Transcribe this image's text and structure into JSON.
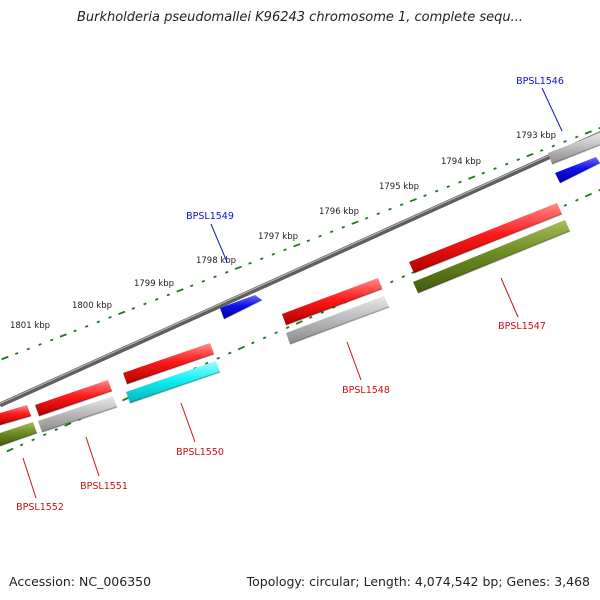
{
  "title": "Burkholderia pseudomallei K96243 chromosome 1, complete sequ...",
  "footer": {
    "accession": "Accession: NC_006350",
    "summary": "Topology: circular; Length: 4,074,542 bp; Genes: 3,468"
  },
  "colors": {
    "gene_label_forward": "#1010cc",
    "gene_label_reverse": "#cc1010",
    "tick_dots": "#1a7a1a",
    "backbone": "#7a7a7a"
  },
  "scale_labels": [
    "1793 kbp",
    "1794 kbp",
    "1795 kbp",
    "1796 kbp",
    "1797 kbp",
    "1798 kbp",
    "1799 kbp",
    "1800 kbp",
    "1801 kbp"
  ],
  "features": [
    {
      "id": "f1",
      "color": "red"
    },
    {
      "id": "f2",
      "color": "red"
    },
    {
      "id": "f3",
      "color": "red"
    },
    {
      "id": "f4",
      "color": "red"
    },
    {
      "id": "f5",
      "color": "red"
    },
    {
      "id": "f6",
      "color": "green"
    },
    {
      "id": "f7",
      "color": "green"
    },
    {
      "id": "f8",
      "color": "gray"
    },
    {
      "id": "f9",
      "color": "gray"
    },
    {
      "id": "f10",
      "color": "gray"
    },
    {
      "id": "f11",
      "color": "cyan"
    },
    {
      "id": "f12",
      "color": "blue"
    },
    {
      "id": "f13",
      "color": "blue"
    },
    {
      "id": "f14",
      "color": "gray"
    }
  ],
  "gene_labels": [
    {
      "text": "BPSL1546",
      "strand": "forward"
    },
    {
      "text": "BPSL1549",
      "strand": "forward"
    },
    {
      "text": "BPSL1547",
      "strand": "reverse"
    },
    {
      "text": "BPSL1548",
      "strand": "reverse"
    },
    {
      "text": "BPSL1550",
      "strand": "reverse"
    },
    {
      "text": "BPSL1551",
      "strand": "reverse"
    },
    {
      "text": "BPSL1552",
      "strand": "reverse"
    }
  ]
}
